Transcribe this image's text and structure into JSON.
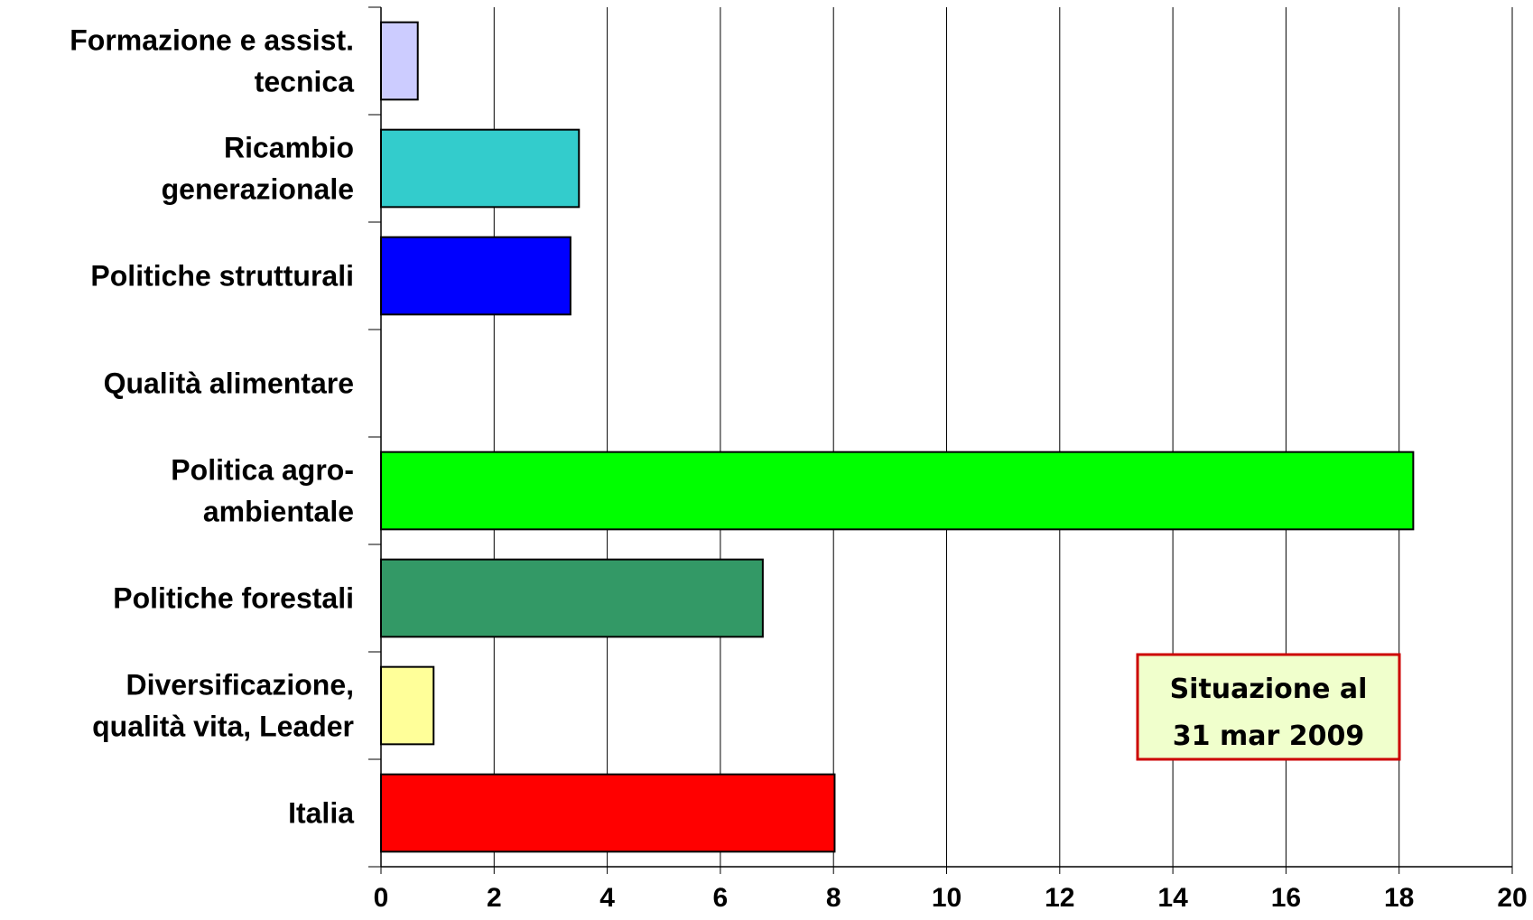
{
  "chart_data": {
    "type": "bar",
    "orientation": "horizontal",
    "categories": [
      [
        "Formazione e assist.",
        "tecnica"
      ],
      [
        "Ricambio",
        "generazionale"
      ],
      [
        "Politiche strutturali"
      ],
      [
        "Qualità alimentare"
      ],
      [
        "Politica agro-",
        "ambientale"
      ],
      [
        "Politiche forestali"
      ],
      [
        "Diversificazione,",
        "qualità  vita, Leader"
      ],
      [
        "Italia"
      ]
    ],
    "values": [
      0.65,
      3.5,
      3.35,
      0,
      18.25,
      6.75,
      0.93,
      8.02
    ],
    "bar_colors": [
      "#CCCCFF",
      "#33CCCC",
      "#0000FF",
      "#FFFFFF",
      "#00FF00",
      "#339966",
      "#FFFF99",
      "#FF0000"
    ],
    "xlim": [
      0,
      20
    ],
    "x_ticks": [
      0,
      2,
      4,
      6,
      8,
      10,
      12,
      14,
      16,
      18,
      20
    ],
    "grid": "vertical",
    "legend": "none",
    "annotation": {
      "lines": [
        "Situazione al",
        "31 mar 2009"
      ],
      "border_color": "#CC0000",
      "background": "#F0FFCC",
      "placement": "bottom-right"
    }
  }
}
